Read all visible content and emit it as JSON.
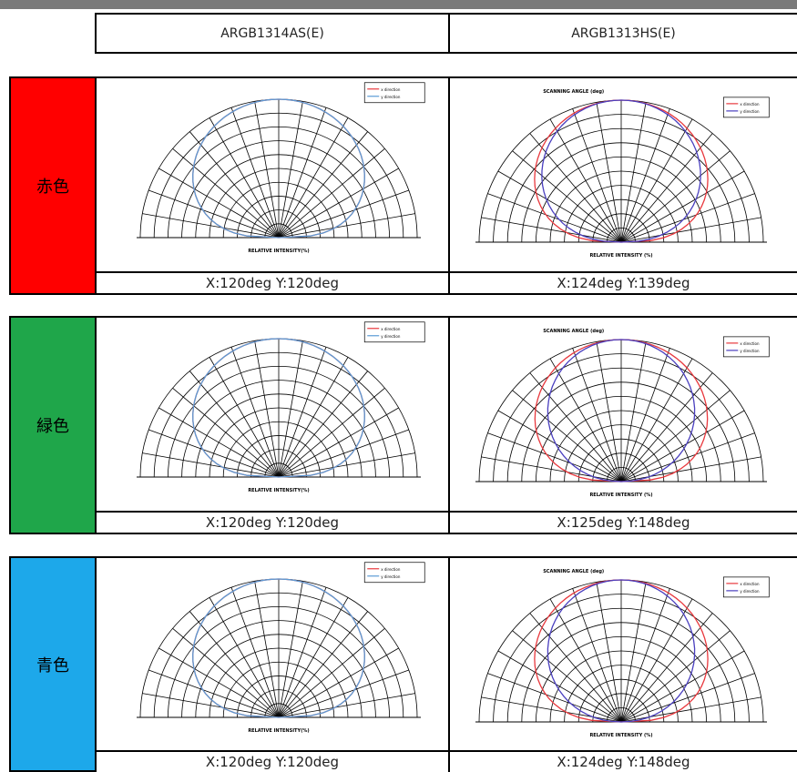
{
  "header": {
    "col_a": "ARGB1314AS(E)",
    "col_b": "ARGB1313HS(E)"
  },
  "rows": [
    {
      "label": "赤色",
      "color": "#ff0000",
      "a": {
        "caption": "X:120deg  Y:120deg",
        "x_deg": 120,
        "y_deg": 120
      },
      "b": {
        "caption": "X:124deg  Y:139deg",
        "x_deg": 124,
        "y_deg": 139
      }
    },
    {
      "label": "緑色",
      "color": "#1fa64a",
      "a": {
        "caption": "X:120deg  Y:120deg",
        "x_deg": 120,
        "y_deg": 120
      },
      "b": {
        "caption": "X:125deg  Y:148deg",
        "x_deg": 125,
        "y_deg": 148
      }
    },
    {
      "label": "青色",
      "color": "#1da8ea",
      "a": {
        "caption": "X:120deg  Y:120deg",
        "x_deg": 120,
        "y_deg": 120
      },
      "b": {
        "caption": "X:124deg  Y:148deg",
        "x_deg": 124,
        "y_deg": 148
      }
    }
  ],
  "chart_text": {
    "a_xlabel": "RELATIVE INTENSITY(%)",
    "b_title": "SCANNING ANGLE (deg)",
    "b_xlabel": "RELATIVE INTENSITY (%)",
    "legend_x": "x direction",
    "legend_y": "y direction"
  },
  "colors": {
    "x_series": "#e8383d",
    "y_series_a": "#5b9bd5",
    "y_series_b": "#4a3fbf"
  }
}
